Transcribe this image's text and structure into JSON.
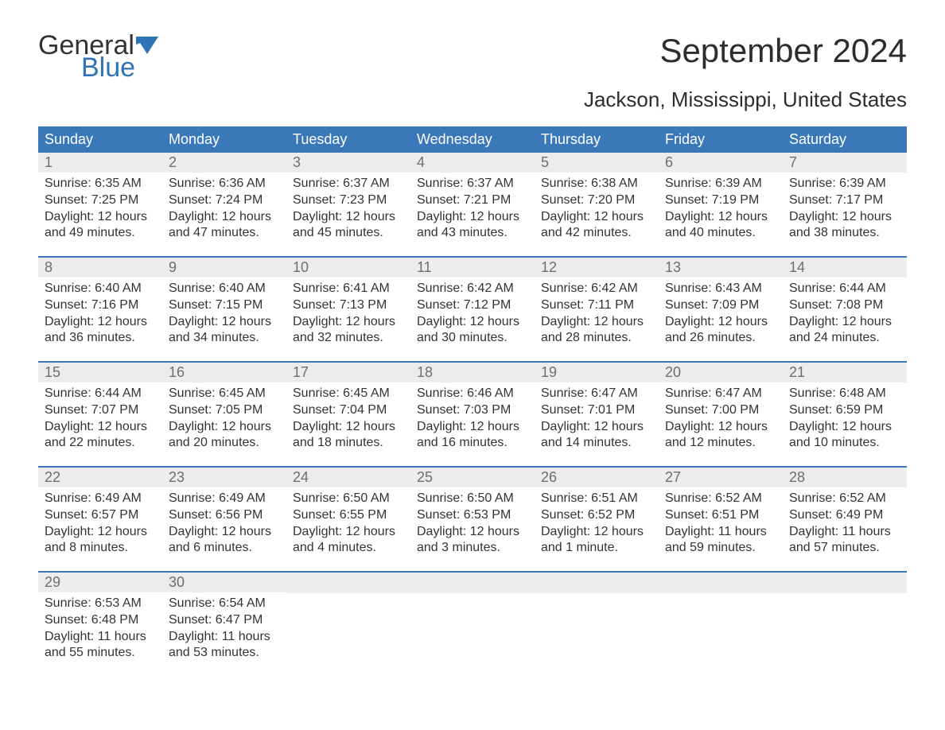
{
  "logo": {
    "text_general": "General",
    "text_blue": "Blue",
    "general_color": "#333333",
    "blue_color": "#2f74b5"
  },
  "title": "September 2024",
  "subtitle": "Jackson, Mississippi, United States",
  "colors": {
    "header_bg": "#3a78b9",
    "header_text": "#ffffff",
    "daynum_bg": "#ececec",
    "daynum_text": "#6e6e6e",
    "body_text": "#333333",
    "week_divider": "#3a78b9",
    "page_bg": "#ffffff"
  },
  "day_headers": [
    "Sunday",
    "Monday",
    "Tuesday",
    "Wednesday",
    "Thursday",
    "Friday",
    "Saturday"
  ],
  "weeks": [
    [
      {
        "n": "1",
        "sunrise": "Sunrise: 6:35 AM",
        "sunset": "Sunset: 7:25 PM",
        "dl1": "Daylight: 12 hours",
        "dl2": "and 49 minutes."
      },
      {
        "n": "2",
        "sunrise": "Sunrise: 6:36 AM",
        "sunset": "Sunset: 7:24 PM",
        "dl1": "Daylight: 12 hours",
        "dl2": "and 47 minutes."
      },
      {
        "n": "3",
        "sunrise": "Sunrise: 6:37 AM",
        "sunset": "Sunset: 7:23 PM",
        "dl1": "Daylight: 12 hours",
        "dl2": "and 45 minutes."
      },
      {
        "n": "4",
        "sunrise": "Sunrise: 6:37 AM",
        "sunset": "Sunset: 7:21 PM",
        "dl1": "Daylight: 12 hours",
        "dl2": "and 43 minutes."
      },
      {
        "n": "5",
        "sunrise": "Sunrise: 6:38 AM",
        "sunset": "Sunset: 7:20 PM",
        "dl1": "Daylight: 12 hours",
        "dl2": "and 42 minutes."
      },
      {
        "n": "6",
        "sunrise": "Sunrise: 6:39 AM",
        "sunset": "Sunset: 7:19 PM",
        "dl1": "Daylight: 12 hours",
        "dl2": "and 40 minutes."
      },
      {
        "n": "7",
        "sunrise": "Sunrise: 6:39 AM",
        "sunset": "Sunset: 7:17 PM",
        "dl1": "Daylight: 12 hours",
        "dl2": "and 38 minutes."
      }
    ],
    [
      {
        "n": "8",
        "sunrise": "Sunrise: 6:40 AM",
        "sunset": "Sunset: 7:16 PM",
        "dl1": "Daylight: 12 hours",
        "dl2": "and 36 minutes."
      },
      {
        "n": "9",
        "sunrise": "Sunrise: 6:40 AM",
        "sunset": "Sunset: 7:15 PM",
        "dl1": "Daylight: 12 hours",
        "dl2": "and 34 minutes."
      },
      {
        "n": "10",
        "sunrise": "Sunrise: 6:41 AM",
        "sunset": "Sunset: 7:13 PM",
        "dl1": "Daylight: 12 hours",
        "dl2": "and 32 minutes."
      },
      {
        "n": "11",
        "sunrise": "Sunrise: 6:42 AM",
        "sunset": "Sunset: 7:12 PM",
        "dl1": "Daylight: 12 hours",
        "dl2": "and 30 minutes."
      },
      {
        "n": "12",
        "sunrise": "Sunrise: 6:42 AM",
        "sunset": "Sunset: 7:11 PM",
        "dl1": "Daylight: 12 hours",
        "dl2": "and 28 minutes."
      },
      {
        "n": "13",
        "sunrise": "Sunrise: 6:43 AM",
        "sunset": "Sunset: 7:09 PM",
        "dl1": "Daylight: 12 hours",
        "dl2": "and 26 minutes."
      },
      {
        "n": "14",
        "sunrise": "Sunrise: 6:44 AM",
        "sunset": "Sunset: 7:08 PM",
        "dl1": "Daylight: 12 hours",
        "dl2": "and 24 minutes."
      }
    ],
    [
      {
        "n": "15",
        "sunrise": "Sunrise: 6:44 AM",
        "sunset": "Sunset: 7:07 PM",
        "dl1": "Daylight: 12 hours",
        "dl2": "and 22 minutes."
      },
      {
        "n": "16",
        "sunrise": "Sunrise: 6:45 AM",
        "sunset": "Sunset: 7:05 PM",
        "dl1": "Daylight: 12 hours",
        "dl2": "and 20 minutes."
      },
      {
        "n": "17",
        "sunrise": "Sunrise: 6:45 AM",
        "sunset": "Sunset: 7:04 PM",
        "dl1": "Daylight: 12 hours",
        "dl2": "and 18 minutes."
      },
      {
        "n": "18",
        "sunrise": "Sunrise: 6:46 AM",
        "sunset": "Sunset: 7:03 PM",
        "dl1": "Daylight: 12 hours",
        "dl2": "and 16 minutes."
      },
      {
        "n": "19",
        "sunrise": "Sunrise: 6:47 AM",
        "sunset": "Sunset: 7:01 PM",
        "dl1": "Daylight: 12 hours",
        "dl2": "and 14 minutes."
      },
      {
        "n": "20",
        "sunrise": "Sunrise: 6:47 AM",
        "sunset": "Sunset: 7:00 PM",
        "dl1": "Daylight: 12 hours",
        "dl2": "and 12 minutes."
      },
      {
        "n": "21",
        "sunrise": "Sunrise: 6:48 AM",
        "sunset": "Sunset: 6:59 PM",
        "dl1": "Daylight: 12 hours",
        "dl2": "and 10 minutes."
      }
    ],
    [
      {
        "n": "22",
        "sunrise": "Sunrise: 6:49 AM",
        "sunset": "Sunset: 6:57 PM",
        "dl1": "Daylight: 12 hours",
        "dl2": "and 8 minutes."
      },
      {
        "n": "23",
        "sunrise": "Sunrise: 6:49 AM",
        "sunset": "Sunset: 6:56 PM",
        "dl1": "Daylight: 12 hours",
        "dl2": "and 6 minutes."
      },
      {
        "n": "24",
        "sunrise": "Sunrise: 6:50 AM",
        "sunset": "Sunset: 6:55 PM",
        "dl1": "Daylight: 12 hours",
        "dl2": "and 4 minutes."
      },
      {
        "n": "25",
        "sunrise": "Sunrise: 6:50 AM",
        "sunset": "Sunset: 6:53 PM",
        "dl1": "Daylight: 12 hours",
        "dl2": "and 3 minutes."
      },
      {
        "n": "26",
        "sunrise": "Sunrise: 6:51 AM",
        "sunset": "Sunset: 6:52 PM",
        "dl1": "Daylight: 12 hours",
        "dl2": "and 1 minute."
      },
      {
        "n": "27",
        "sunrise": "Sunrise: 6:52 AM",
        "sunset": "Sunset: 6:51 PM",
        "dl1": "Daylight: 11 hours",
        "dl2": "and 59 minutes."
      },
      {
        "n": "28",
        "sunrise": "Sunrise: 6:52 AM",
        "sunset": "Sunset: 6:49 PM",
        "dl1": "Daylight: 11 hours",
        "dl2": "and 57 minutes."
      }
    ],
    [
      {
        "n": "29",
        "sunrise": "Sunrise: 6:53 AM",
        "sunset": "Sunset: 6:48 PM",
        "dl1": "Daylight: 11 hours",
        "dl2": "and 55 minutes."
      },
      {
        "n": "30",
        "sunrise": "Sunrise: 6:54 AM",
        "sunset": "Sunset: 6:47 PM",
        "dl1": "Daylight: 11 hours",
        "dl2": "and 53 minutes."
      },
      null,
      null,
      null,
      null,
      null
    ]
  ]
}
